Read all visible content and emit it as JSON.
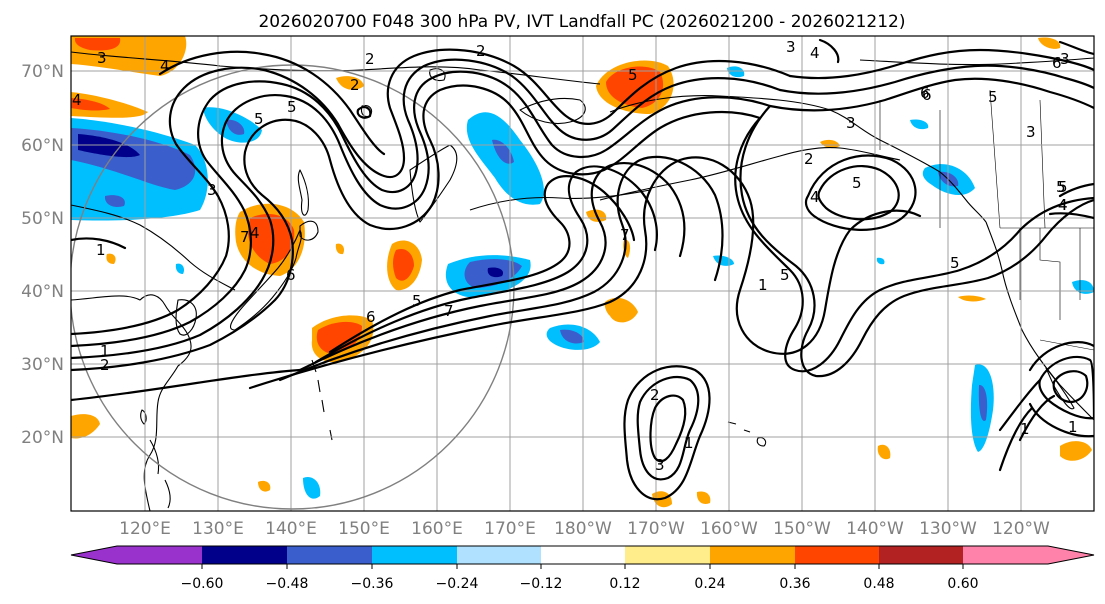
{
  "title": "2026020700 F048 300 hPa PV, IVT Landfall PC (2026021200 - 2026021212)",
  "lat_labels": [
    "70°N",
    "60°N",
    "50°N",
    "40°N",
    "30°N",
    "20°N"
  ],
  "lon_labels": [
    "120°E",
    "130°E",
    "140°E",
    "150°E",
    "160°E",
    "170°E",
    "180°W",
    "170°W",
    "160°W",
    "150°W",
    "140°W",
    "130°W",
    "120°W"
  ],
  "colorbar": {
    "ticks": [
      "−0.60",
      "−0.48",
      "−0.36",
      "−0.24",
      "−0.12",
      "0.12",
      "0.24",
      "0.36",
      "0.48",
      "0.60"
    ],
    "colors": [
      "#9932cc",
      "#00008b",
      "#3a5fcd",
      "#00bfff",
      "#b0e2ff",
      "#ffffff",
      "#ffec8b",
      "#ffa500",
      "#ff4500",
      "#b22222",
      "#ff82ab"
    ]
  },
  "contour_labels": [
    "3",
    "4",
    "4",
    "2",
    "2",
    "5",
    "3",
    "4",
    "5",
    "7",
    "6",
    "3",
    "6",
    "5",
    "4",
    "1",
    "5",
    "5",
    "2",
    "3",
    "1",
    "7",
    "6",
    "4",
    "5",
    "6",
    "5",
    "4",
    "1",
    "1",
    "2",
    "2",
    "3",
    "1",
    "1",
    "5",
    "6",
    "4",
    "3",
    "3",
    "2",
    "5",
    "5",
    "7"
  ]
}
